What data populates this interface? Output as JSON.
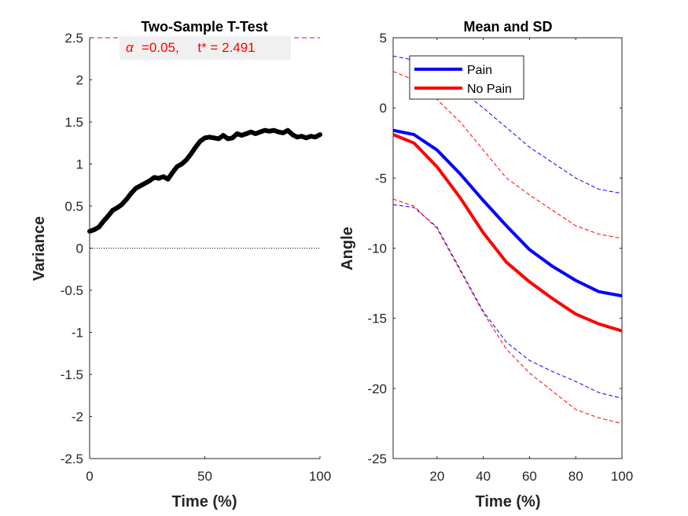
{
  "chart_data": [
    {
      "type": "line",
      "title": "Two-Sample T-Test",
      "xlabel": "Time (%)",
      "ylabel": "Variance",
      "xlim": [
        0,
        100
      ],
      "ylim": [
        -2.5,
        2.5
      ],
      "xticks": [
        "0",
        "50",
        "100"
      ],
      "yticks": [
        "-2.5",
        "-2",
        "-1.5",
        "-1",
        "-0.5",
        "0",
        "0.5",
        "1",
        "1.5",
        "2",
        "2.5"
      ],
      "annotation": "=0.05,     t* = 2.491",
      "annotation_symbol": "α",
      "threshold": 2.491,
      "colors": {
        "line": "#000000",
        "threshold": "#ff0000",
        "annot_bg": "#f0f0f0"
      },
      "series": [
        {
          "x": [
            0,
            2,
            4,
            6,
            8,
            10,
            12,
            14,
            16,
            18,
            20,
            22,
            24,
            26,
            28,
            30,
            32,
            34,
            36,
            38,
            40,
            42,
            44,
            46,
            48,
            50,
            52,
            54,
            56,
            58,
            60,
            62,
            64,
            66,
            68,
            70,
            72,
            74,
            76,
            78,
            80,
            82,
            84,
            86,
            88,
            90,
            92,
            94,
            96,
            98,
            100
          ],
          "values": [
            0.2,
            0.22,
            0.25,
            0.32,
            0.38,
            0.45,
            0.48,
            0.52,
            0.58,
            0.65,
            0.71,
            0.74,
            0.77,
            0.8,
            0.84,
            0.83,
            0.85,
            0.82,
            0.9,
            0.97,
            1.0,
            1.05,
            1.12,
            1.2,
            1.27,
            1.31,
            1.32,
            1.31,
            1.3,
            1.34,
            1.3,
            1.31,
            1.36,
            1.34,
            1.36,
            1.38,
            1.36,
            1.38,
            1.4,
            1.39,
            1.4,
            1.38,
            1.37,
            1.4,
            1.35,
            1.32,
            1.33,
            1.31,
            1.33,
            1.32,
            1.35
          ]
        }
      ]
    },
    {
      "type": "line",
      "title": "Mean and SD",
      "xlabel": "Time (%)",
      "ylabel": "Angle",
      "xlim": [
        1,
        100
      ],
      "ylim": [
        -25,
        5
      ],
      "xticks": [
        "20",
        "40",
        "60",
        "80",
        "100"
      ],
      "yticks": [
        "-25",
        "-20",
        "-15",
        "-10",
        "-5",
        "0",
        "5"
      ],
      "legend_position": "top-left",
      "x": [
        1,
        10,
        20,
        30,
        40,
        50,
        60,
        70,
        80,
        90,
        100
      ],
      "series": [
        {
          "name": "Pain",
          "color": "#0000ff",
          "values": [
            -1.6,
            -1.9,
            -3.0,
            -4.7,
            -6.6,
            -8.4,
            -10.1,
            -11.3,
            -12.3,
            -13.1,
            -13.4
          ]
        },
        {
          "name": "No Pain",
          "color": "#ff0000",
          "values": [
            -1.9,
            -2.5,
            -4.2,
            -6.4,
            -8.9,
            -11.0,
            -12.4,
            -13.6,
            -14.7,
            -15.4,
            -15.9
          ]
        }
      ],
      "sd_bands": [
        {
          "color": "#0000ff",
          "upper": [
            3.7,
            3.4,
            2.4,
            1.3,
            0.0,
            -1.4,
            -2.8,
            -3.9,
            -5.0,
            -5.8,
            -6.1
          ],
          "lower": [
            -6.9,
            -7.1,
            -8.5,
            -11.5,
            -14.5,
            -16.7,
            -18.0,
            -18.8,
            -19.5,
            -20.3,
            -20.7
          ]
        },
        {
          "color": "#ff0000",
          "upper": [
            2.6,
            2.0,
            0.6,
            -1.0,
            -3.0,
            -5.0,
            -6.2,
            -7.3,
            -8.4,
            -9.0,
            -9.3
          ]
        },
        {
          "color": "#ff0000",
          "lower": [
            -6.5,
            -7.0,
            -8.6,
            -11.6,
            -14.6,
            -17.2,
            -18.9,
            -20.2,
            -21.5,
            -22.1,
            -22.5
          ]
        }
      ]
    }
  ]
}
